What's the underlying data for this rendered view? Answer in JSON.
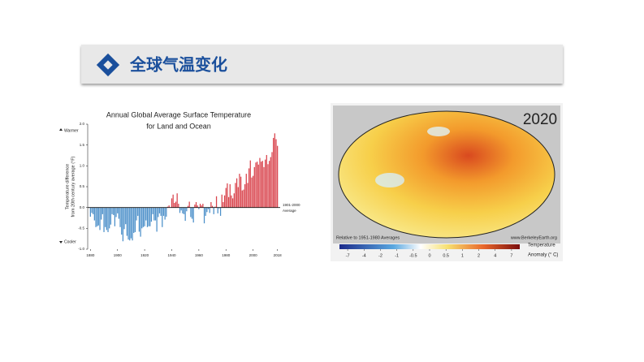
{
  "header": {
    "title": "全球气温变化"
  },
  "chart_data": {
    "type": "bar",
    "title": [
      "Annual Global Average Surface Temperature",
      "for Land and Ocean"
    ],
    "y_label": [
      "Temperature difference",
      "from 20th century average (°F)"
    ],
    "annotations": {
      "warmer": "Warmer",
      "cooler": "Cooler",
      "baseline": [
        "1901-2000",
        "Average"
      ]
    },
    "x": [
      1880,
      1881,
      1882,
      1883,
      1884,
      1885,
      1886,
      1887,
      1888,
      1889,
      1890,
      1891,
      1892,
      1893,
      1894,
      1895,
      1896,
      1897,
      1898,
      1899,
      1900,
      1901,
      1902,
      1903,
      1904,
      1905,
      1906,
      1907,
      1908,
      1909,
      1910,
      1911,
      1912,
      1913,
      1914,
      1915,
      1916,
      1917,
      1918,
      1919,
      1920,
      1921,
      1922,
      1923,
      1924,
      1925,
      1926,
      1927,
      1928,
      1929,
      1930,
      1931,
      1932,
      1933,
      1934,
      1935,
      1936,
      1937,
      1938,
      1939,
      1940,
      1941,
      1942,
      1943,
      1944,
      1945,
      1946,
      1947,
      1948,
      1949,
      1950,
      1951,
      1952,
      1953,
      1954,
      1955,
      1956,
      1957,
      1958,
      1959,
      1960,
      1961,
      1962,
      1963,
      1964,
      1965,
      1966,
      1967,
      1968,
      1969,
      1970,
      1971,
      1972,
      1973,
      1974,
      1975,
      1976,
      1977,
      1978,
      1979,
      1980,
      1981,
      1982,
      1983,
      1984,
      1985,
      1986,
      1987,
      1988,
      1989,
      1990,
      1991,
      1992,
      1993,
      1994,
      1995,
      1996,
      1997,
      1998,
      1999,
      2000,
      2001,
      2002,
      2003,
      2004,
      2005,
      2006,
      2007,
      2008,
      2009,
      2010,
      2011,
      2012,
      2013,
      2014,
      2015,
      2016,
      2017,
      2018
    ],
    "values": [
      -0.22,
      -0.13,
      -0.16,
      -0.31,
      -0.47,
      -0.45,
      -0.43,
      -0.54,
      -0.29,
      -0.16,
      -0.59,
      -0.47,
      -0.54,
      -0.59,
      -0.5,
      -0.41,
      -0.16,
      -0.18,
      -0.45,
      -0.23,
      -0.14,
      -0.27,
      -0.47,
      -0.65,
      -0.81,
      -0.52,
      -0.4,
      -0.68,
      -0.77,
      -0.79,
      -0.74,
      -0.79,
      -0.61,
      -0.59,
      -0.31,
      -0.2,
      -0.58,
      -0.7,
      -0.5,
      -0.47,
      -0.45,
      -0.31,
      -0.47,
      -0.45,
      -0.45,
      -0.34,
      -0.16,
      -0.31,
      -0.31,
      -0.58,
      -0.23,
      -0.14,
      -0.2,
      -0.47,
      -0.2,
      -0.29,
      -0.22,
      0.02,
      0.05,
      0.0,
      0.22,
      0.31,
      0.11,
      0.14,
      0.34,
      0.09,
      -0.13,
      -0.07,
      -0.14,
      -0.16,
      -0.32,
      -0.09,
      0.04,
      0.14,
      -0.23,
      -0.27,
      -0.36,
      0.07,
      0.13,
      0.05,
      -0.04,
      0.09,
      0.05,
      0.09,
      -0.38,
      -0.2,
      -0.11,
      -0.04,
      -0.13,
      0.13,
      0.04,
      -0.16,
      0.02,
      0.27,
      -0.14,
      -0.02,
      -0.2,
      0.31,
      0.13,
      0.29,
      0.47,
      0.58,
      0.25,
      0.56,
      0.29,
      0.22,
      0.34,
      0.59,
      0.7,
      0.49,
      0.81,
      0.74,
      0.41,
      0.43,
      0.56,
      0.81,
      0.59,
      0.94,
      1.13,
      0.72,
      0.76,
      0.97,
      1.08,
      1.1,
      1.03,
      1.19,
      1.1,
      1.12,
      0.97,
      1.15,
      1.26,
      1.04,
      1.12,
      1.21,
      1.33,
      1.67,
      1.78,
      1.64,
      1.48
    ],
    "positive_color": "#d9434c",
    "negative_color": "#4b8fc9",
    "xlim": [
      1878,
      2020
    ],
    "xticks": [
      1880,
      1900,
      1920,
      1940,
      1960,
      1980,
      2000,
      2018
    ],
    "ylim": [
      -1,
      2
    ],
    "yticks": [
      {
        "value": -1,
        "label": "-1.0"
      },
      -0.5,
      {
        "value": 0,
        "label": "0.0"
      },
      0.5,
      {
        "value": 1,
        "label": "1.0"
      },
      1.5,
      {
        "value": 2,
        "label": "2.0"
      }
    ]
  },
  "map": {
    "year": "2020",
    "note": "Relative to 1951-1980 Averages",
    "source": "www.BerkeleyEarth.org",
    "colorbar": {
      "ticks": [
        -7,
        -4,
        -2,
        -1,
        -0.5,
        0,
        0.5,
        1,
        2,
        4,
        7
      ],
      "label": [
        "Temperature",
        "Anomaly (° C)"
      ]
    }
  }
}
